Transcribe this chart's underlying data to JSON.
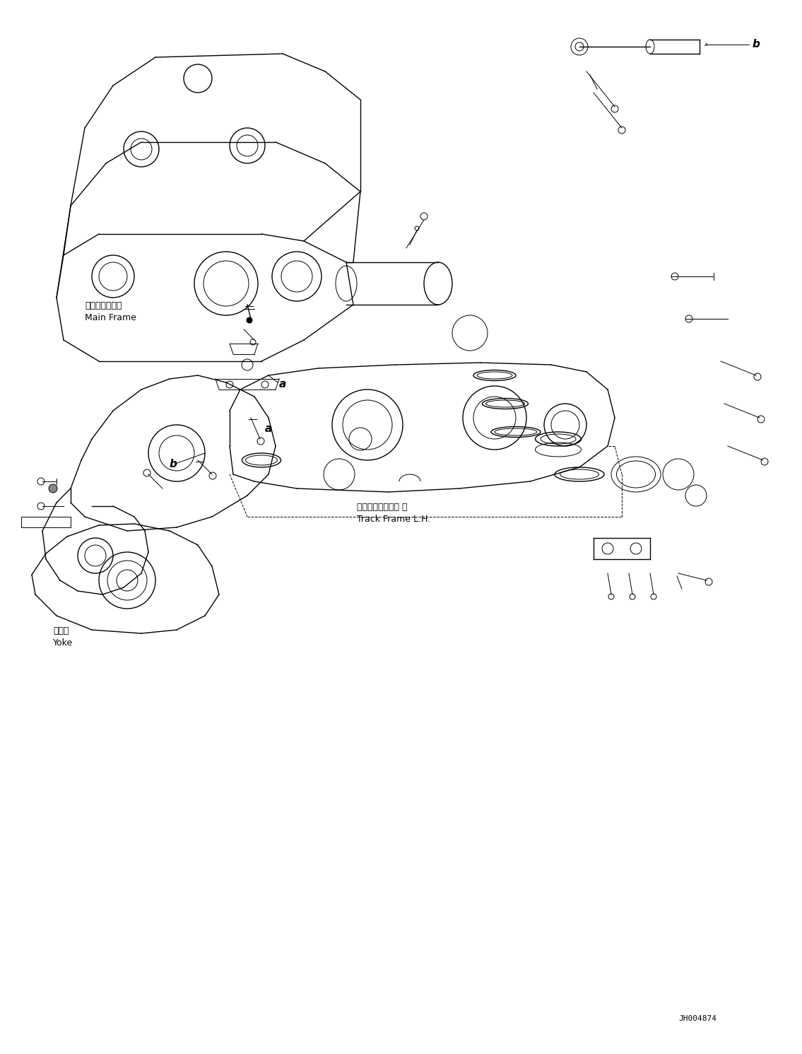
{
  "background_color": "#ffffff",
  "line_color": "#000000",
  "page_width": 11.35,
  "page_height": 14.91,
  "dpi": 100,
  "part_id": "JH004874",
  "labels": {
    "main_frame_ja": "メインフレーム",
    "main_frame_en": "Main Frame",
    "track_frame_ja": "トラックフレーム 左",
    "track_frame_en": "Track Frame L.H.",
    "yoke_ja": "ヨーク",
    "yoke_en": "Yoke",
    "label_a": "a",
    "label_b": "b"
  },
  "annotation_fontsize": 9,
  "label_fontsize": 11,
  "part_id_fontsize": 8
}
